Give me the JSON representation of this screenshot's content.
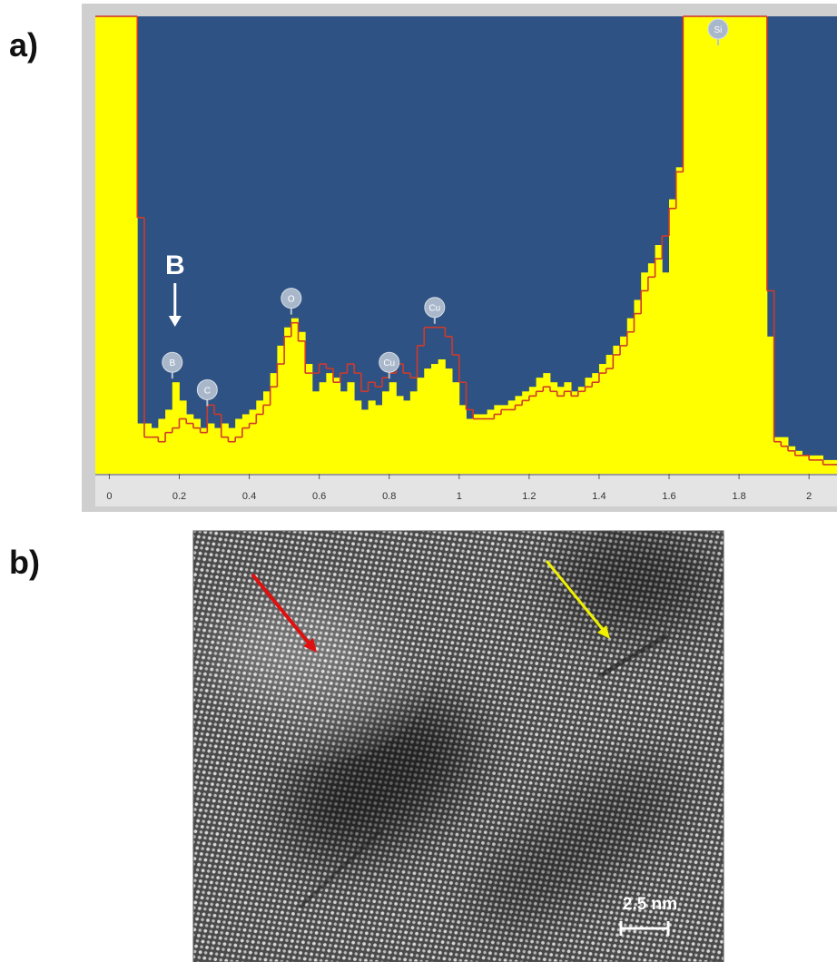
{
  "panel_labels": [
    "a)",
    "b)"
  ],
  "chart_data": {
    "type": "histogram",
    "xlim": [
      -0.04,
      2.08
    ],
    "ylim": [
      0,
      100
    ],
    "xticks": [
      0,
      0.2,
      0.4,
      0.6,
      0.8,
      1,
      1.2,
      1.4,
      1.6,
      1.8,
      2
    ],
    "bins": [
      -0.04,
      -0.02,
      0,
      0.02,
      0.04,
      0.06,
      0.08,
      0.1,
      0.12,
      0.14,
      0.16,
      0.18,
      0.2,
      0.22,
      0.24,
      0.26,
      0.28,
      0.3,
      0.32,
      0.34,
      0.36,
      0.38,
      0.4,
      0.42,
      0.44,
      0.46,
      0.48,
      0.5,
      0.52,
      0.54,
      0.56,
      0.58,
      0.6,
      0.62,
      0.64,
      0.66,
      0.68,
      0.7,
      0.72,
      0.74,
      0.76,
      0.78,
      0.8,
      0.82,
      0.84,
      0.86,
      0.88,
      0.9,
      0.92,
      0.94,
      0.96,
      0.98,
      1,
      1.02,
      1.04,
      1.06,
      1.08,
      1.1,
      1.12,
      1.14,
      1.16,
      1.18,
      1.2,
      1.22,
      1.24,
      1.26,
      1.28,
      1.3,
      1.32,
      1.34,
      1.36,
      1.38,
      1.4,
      1.42,
      1.44,
      1.46,
      1.48,
      1.5,
      1.52,
      1.54,
      1.56,
      1.58,
      1.6,
      1.62,
      1.64,
      1.66,
      1.68,
      1.7,
      1.72,
      1.74,
      1.76,
      1.78,
      1.8,
      1.82,
      1.84,
      1.86,
      1.88,
      1.9,
      1.92,
      1.94,
      1.96,
      1.98,
      2,
      2.02,
      2.04,
      2.06,
      2.08
    ],
    "series": [
      {
        "color": "#ffff00",
        "values": [
          100,
          100,
          100,
          100,
          100,
          100,
          11,
          11,
          10,
          12,
          14,
          20,
          16,
          13,
          12,
          10,
          11,
          10,
          11,
          10,
          12,
          13,
          14,
          16,
          18,
          22,
          28,
          32,
          34,
          31,
          24,
          18,
          20,
          22,
          21,
          18,
          20,
          16,
          14,
          16,
          15,
          18,
          20,
          17,
          16,
          18,
          21,
          23,
          24,
          25,
          23,
          20,
          15,
          12,
          13,
          13,
          14,
          15,
          15,
          16,
          17,
          18,
          19,
          21,
          22,
          20,
          19,
          20,
          18,
          19,
          21,
          22,
          24,
          26,
          28,
          30,
          34,
          38,
          44,
          46,
          50,
          44,
          60,
          67,
          100,
          100,
          100,
          100,
          100,
          100,
          100,
          100,
          100,
          100,
          100,
          100,
          30,
          8,
          8,
          6,
          5,
          4,
          4,
          4,
          3,
          3
        ]
      },
      {
        "color": "#d03a2a",
        "values": [
          100,
          100,
          100,
          100,
          100,
          100,
          56,
          8,
          8,
          7,
          9,
          10,
          12,
          11,
          10,
          9,
          15,
          13,
          8,
          7,
          8,
          10,
          11,
          13,
          15,
          19,
          24,
          30,
          33,
          29,
          22,
          22,
          24,
          23,
          20,
          22,
          24,
          22,
          18,
          20,
          19,
          21,
          22,
          24,
          22,
          21,
          28,
          32,
          32,
          32,
          30,
          26,
          20,
          14,
          12,
          12,
          12,
          13,
          14,
          14,
          15,
          16,
          17,
          18,
          19,
          18,
          17,
          18,
          17,
          18,
          19,
          20,
          22,
          23,
          26,
          28,
          31,
          35,
          40,
          43,
          47,
          52,
          58,
          66,
          100,
          100,
          100,
          100,
          100,
          100,
          100,
          100,
          100,
          100,
          100,
          100,
          40,
          7,
          6,
          5,
          4,
          4,
          3,
          3,
          2,
          2
        ]
      }
    ],
    "peaks": [
      {
        "label": "B",
        "x": 0.18,
        "y": 20
      },
      {
        "label": "C",
        "x": 0.28,
        "y": 14
      },
      {
        "label": "O",
        "x": 0.52,
        "y": 34
      },
      {
        "label": "Cu",
        "x": 0.8,
        "y": 20
      },
      {
        "label": "Cu",
        "x": 0.93,
        "y": 32
      },
      {
        "label": "Si",
        "x": 1.74,
        "y": 100
      }
    ],
    "annotation": "B"
  },
  "image": {
    "scale_bar": "2.5 nm"
  }
}
